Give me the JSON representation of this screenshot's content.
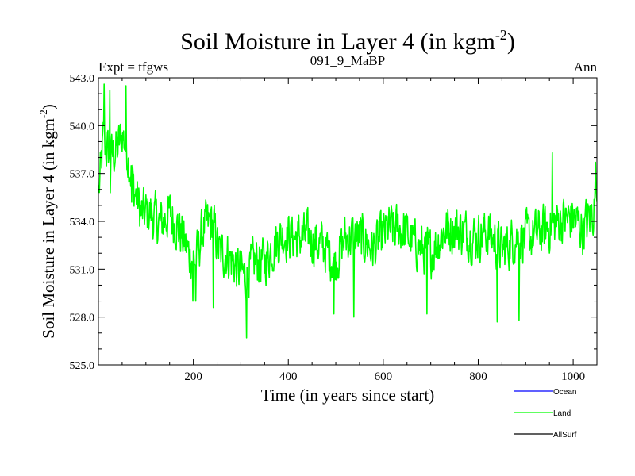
{
  "chart_data": {
    "type": "line",
    "title": "Soil Moisture in Layer 4 (in kgm",
    "title_sup": "-2",
    "title_end": ")",
    "subtitle_left": "Expt = tfgws",
    "subtitle_center": "091_9_MaBP",
    "subtitle_right": "Ann",
    "xlabel": "Time (in years since start)",
    "ylabel": "Soil Moisture in Layer 4 (in kgm",
    "ylabel_sup": "-2",
    "ylabel_end": ")",
    "xlim": [
      0,
      1050
    ],
    "ylim": [
      525.0,
      543.0
    ],
    "x_ticks": [
      200,
      400,
      600,
      800,
      1000
    ],
    "x_tick_labels": [
      "200",
      "400",
      "600",
      "800",
      "1000"
    ],
    "y_ticks": [
      525.0,
      528.0,
      531.0,
      534.0,
      537.0,
      540.0,
      543.0
    ],
    "y_tick_labels": [
      "525.0",
      "528.0",
      "531.0",
      "534.0",
      "537.0",
      "540.0",
      "543.0"
    ],
    "legend": [
      {
        "name": "Ocean",
        "color": "#0000ff"
      },
      {
        "name": "Land",
        "color": "#00ff00"
      },
      {
        "name": "AllSurf",
        "color": "#000000"
      }
    ],
    "series": [
      {
        "name": "Land",
        "color": "#00ff00",
        "anchors": [
          [
            0,
            535.5
          ],
          [
            10,
            539.0
          ],
          [
            25,
            538.0
          ],
          [
            40,
            538.5
          ],
          [
            50,
            539.5
          ],
          [
            60,
            538.5
          ],
          [
            75,
            536.0
          ],
          [
            90,
            534.5
          ],
          [
            110,
            534.5
          ],
          [
            130,
            533.8
          ],
          [
            150,
            534.5
          ],
          [
            170,
            533.5
          ],
          [
            190,
            532.0
          ],
          [
            205,
            531.5
          ],
          [
            220,
            533.5
          ],
          [
            240,
            534.0
          ],
          [
            255,
            532.0
          ],
          [
            270,
            532.0
          ],
          [
            290,
            531.2
          ],
          [
            310,
            530.5
          ],
          [
            330,
            531.5
          ],
          [
            350,
            531.5
          ],
          [
            370,
            532.5
          ],
          [
            390,
            533.2
          ],
          [
            410,
            533.0
          ],
          [
            440,
            533.0
          ],
          [
            470,
            532.5
          ],
          [
            500,
            531.5
          ],
          [
            520,
            533.0
          ],
          [
            550,
            533.0
          ],
          [
            580,
            532.3
          ],
          [
            610,
            533.5
          ],
          [
            640,
            533.5
          ],
          [
            670,
            532.5
          ],
          [
            700,
            532.0
          ],
          [
            730,
            533.5
          ],
          [
            760,
            533.5
          ],
          [
            790,
            533.0
          ],
          [
            820,
            533.3
          ],
          [
            850,
            532.2
          ],
          [
            880,
            533.0
          ],
          [
            910,
            533.0
          ],
          [
            940,
            533.5
          ],
          [
            970,
            534.0
          ],
          [
            1000,
            534.2
          ],
          [
            1020,
            533.5
          ],
          [
            1040,
            534.5
          ],
          [
            1050,
            535.5
          ]
        ],
        "noise_amplitude": 2.0,
        "spikes": [
          [
            12,
            542.6
          ],
          [
            24,
            542.2
          ],
          [
            58,
            542.5
          ],
          [
            25,
            535.8
          ],
          [
            70,
            535.2
          ],
          [
            312,
            526.7
          ],
          [
            242,
            528.6
          ],
          [
            496,
            528.2
          ],
          [
            538,
            528.0
          ],
          [
            692,
            528.2
          ],
          [
            840,
            527.7
          ],
          [
            886,
            527.8
          ],
          [
            199,
            529.0
          ],
          [
            205,
            529.0
          ],
          [
            1047,
            537.7
          ],
          [
            956,
            538.3
          ]
        ]
      }
    ]
  }
}
